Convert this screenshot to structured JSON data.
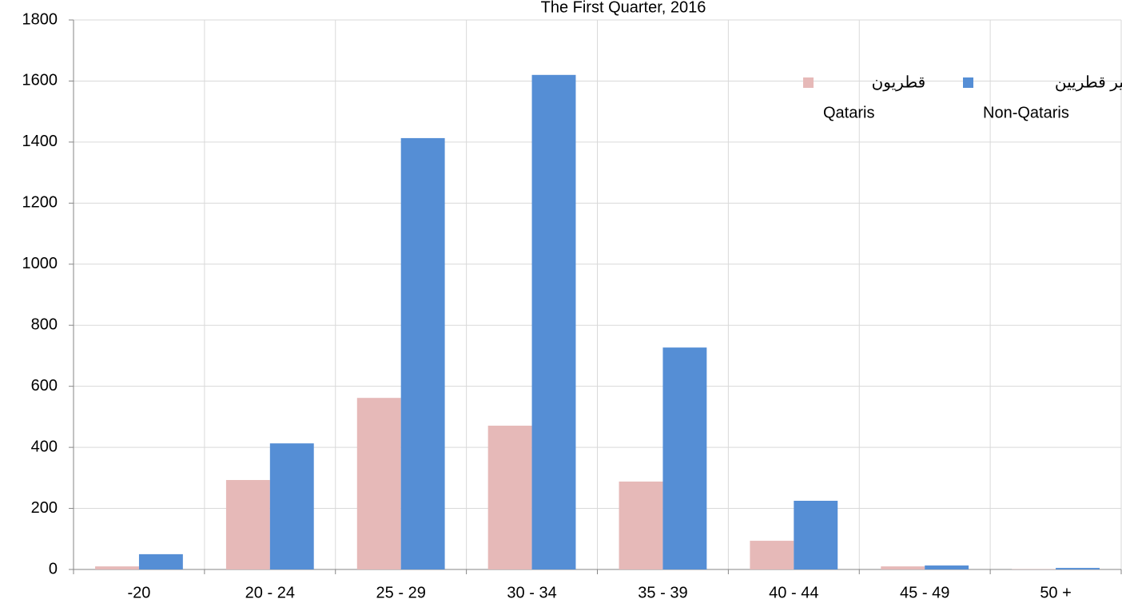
{
  "chart_data": {
    "type": "bar",
    "title": "The First Quarter, 2016",
    "categories": [
      "-20",
      "20 - 24",
      "25 - 29",
      "30 - 34",
      "35 - 39",
      "40 - 44",
      "45 - 49",
      "50 +"
    ],
    "series": [
      {
        "name": "Qataris",
        "name_ar": "قطريون",
        "color": "#e6b9b8",
        "values": [
          10,
          293,
          562,
          471,
          288,
          94,
          10,
          1
        ]
      },
      {
        "name": "Non-Qataris",
        "name_ar": "غير قطريين",
        "color": "#558ed5",
        "values": [
          50,
          413,
          1413,
          1620,
          727,
          225,
          13,
          5
        ]
      }
    ],
    "ylim": [
      0,
      1800
    ],
    "yticks": [
      0,
      200,
      400,
      600,
      800,
      1000,
      1200,
      1400,
      1600,
      1800
    ],
    "grid": true
  }
}
